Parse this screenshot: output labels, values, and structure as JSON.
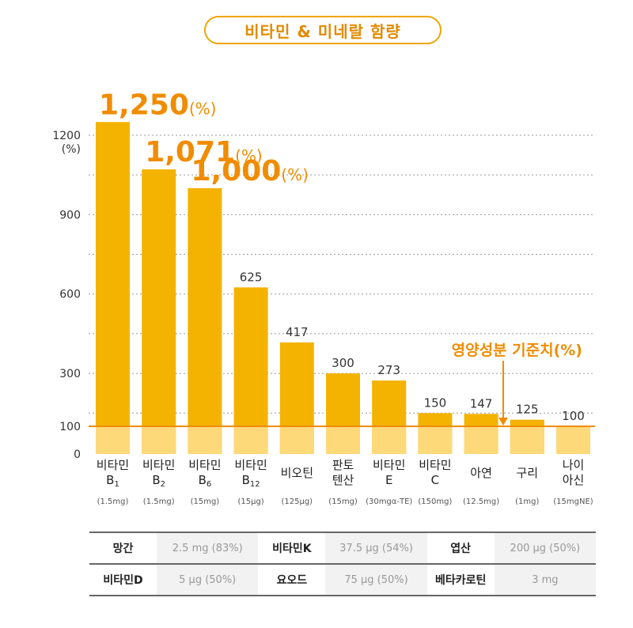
{
  "title": "비타민 & 미네랄 함량",
  "y_axis_unit": "(%)",
  "reference_label": "영양성분 기준치(%)",
  "chart_data": {
    "type": "bar",
    "ylim": [
      0,
      1300
    ],
    "yticks": [
      0,
      100,
      300,
      600,
      900,
      1200
    ],
    "ylabel": "(%)",
    "reference_line": 100,
    "bars": [
      {
        "name_line1": "비타민",
        "name_line2": "B",
        "sub": "1",
        "amount": "(1.5mg)",
        "value": 1250,
        "label": "1,250",
        "label_unit": "(%)",
        "highlight": true
      },
      {
        "name_line1": "비타민",
        "name_line2": "B",
        "sub": "2",
        "amount": "(1.5mg)",
        "value": 1071,
        "label": "1,071",
        "label_unit": "(%)",
        "highlight": true
      },
      {
        "name_line1": "비타민",
        "name_line2": "B",
        "sub": "6",
        "amount": "(15mg)",
        "value": 1000,
        "label": "1,000",
        "label_unit": "(%)",
        "highlight": true
      },
      {
        "name_line1": "비타민",
        "name_line2": "B",
        "sub": "12",
        "amount": "(15μg)",
        "value": 625,
        "label": "625",
        "label_unit": "",
        "highlight": false
      },
      {
        "name_line1": "비오틴",
        "name_line2": "",
        "sub": "",
        "amount": "(125μg)",
        "value": 417,
        "label": "417",
        "label_unit": "",
        "highlight": false
      },
      {
        "name_line1": "판토",
        "name_line2": "텐산",
        "sub": "",
        "amount": "(15mg)",
        "value": 300,
        "label": "300",
        "label_unit": "",
        "highlight": false
      },
      {
        "name_line1": "비타민",
        "name_line2": "E",
        "sub": "",
        "amount": "(30mgα-TE)",
        "value": 273,
        "label": "273",
        "label_unit": "",
        "highlight": false
      },
      {
        "name_line1": "비타민",
        "name_line2": "C",
        "sub": "",
        "amount": "(150mg)",
        "value": 150,
        "label": "150",
        "label_unit": "",
        "highlight": false
      },
      {
        "name_line1": "아연",
        "name_line2": "",
        "sub": "",
        "amount": "(12.5mg)",
        "value": 147,
        "label": "147",
        "label_unit": "",
        "highlight": false
      },
      {
        "name_line1": "구리",
        "name_line2": "",
        "sub": "",
        "amount": "(1mg)",
        "value": 125,
        "label": "125",
        "label_unit": "",
        "highlight": false
      },
      {
        "name_line1": "나이",
        "name_line2": "아신",
        "sub": "",
        "amount": "(15mgNE)",
        "value": 100,
        "label": "100",
        "label_unit": "",
        "highlight": false
      }
    ]
  },
  "table": [
    [
      {
        "k": "망간",
        "v": "2.5 mg (83%)"
      },
      {
        "k": "비타민K",
        "v": "37.5 μg (54%)"
      },
      {
        "k": "엽산",
        "v": "200 μg (50%)"
      }
    ],
    [
      {
        "k": "비타민D",
        "v": "5 μg (50%)"
      },
      {
        "k": "요오드",
        "v": "75 μg (50%)"
      },
      {
        "k": "베타카로틴",
        "v": "3 mg"
      }
    ]
  ],
  "colors": {
    "bar": "#f3b300",
    "bar_base": "#fdd97a",
    "accent": "#f08c00",
    "ref_line": "#f08c00",
    "grid": "#999999"
  }
}
